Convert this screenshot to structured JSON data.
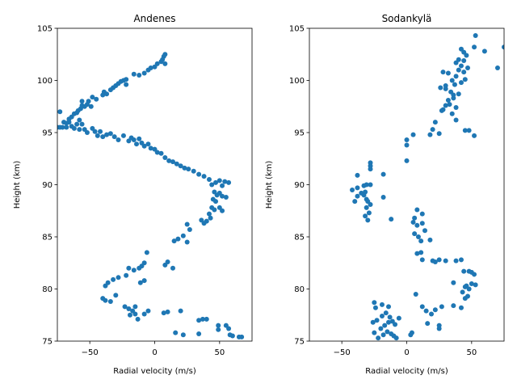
{
  "chart_data": [
    {
      "type": "scatter",
      "title": "Andenes",
      "xlabel": "Radial velocity (m/s)",
      "ylabel": "Height (km)",
      "xlim": [
        -75,
        75
      ],
      "ylim": [
        75,
        105
      ],
      "xticks": [
        -50,
        0,
        50
      ],
      "yticks": [
        75,
        80,
        85,
        90,
        95,
        100,
        105
      ],
      "grid": false,
      "color": "#1f77b4",
      "points": [
        [
          -75,
          95.5
        ],
        [
          -73,
          95.5
        ],
        [
          -71,
          95.5
        ],
        [
          -70,
          96.0
        ],
        [
          -68,
          95.5
        ],
        [
          -66,
          96.0
        ],
        [
          -64,
          95.6
        ],
        [
          -62,
          95.4
        ],
        [
          -60,
          95.8
        ],
        [
          -58,
          95.3
        ],
        [
          -56,
          95.8
        ],
        [
          -54,
          95.3
        ],
        [
          -52,
          95.0
        ],
        [
          -48,
          95.4
        ],
        [
          -46,
          95.1
        ],
        [
          -44,
          94.7
        ],
        [
          -42,
          95.1
        ],
        [
          -40,
          94.6
        ],
        [
          -37,
          94.8
        ],
        [
          -34,
          94.9
        ],
        [
          -31,
          94.6
        ],
        [
          -28,
          94.3
        ],
        [
          -24,
          94.7
        ],
        [
          -20,
          94.2
        ],
        [
          -18,
          94.5
        ],
        [
          -16,
          94.3
        ],
        [
          -14,
          93.9
        ],
        [
          -12,
          94.4
        ],
        [
          -10,
          94.0
        ],
        [
          -8,
          93.7
        ],
        [
          -5,
          93.9
        ],
        [
          -3,
          93.5
        ],
        [
          0,
          93.4
        ],
        [
          2,
          93.1
        ],
        [
          5,
          93.0
        ],
        [
          8,
          92.6
        ],
        [
          11,
          92.3
        ],
        [
          14,
          92.2
        ],
        [
          17,
          92.0
        ],
        [
          20,
          91.8
        ],
        [
          23,
          91.6
        ],
        [
          26,
          91.5
        ],
        [
          30,
          91.3
        ],
        [
          34,
          91.0
        ],
        [
          38,
          90.8
        ],
        [
          42,
          90.5
        ],
        [
          44,
          90.0
        ],
        [
          47,
          90.2
        ],
        [
          50,
          90.4
        ],
        [
          52,
          89.9
        ],
        [
          54,
          90.3
        ],
        [
          57,
          90.2
        ],
        [
          46,
          89.3
        ],
        [
          48,
          89.0
        ],
        [
          50,
          89.2
        ],
        [
          52,
          88.9
        ],
        [
          55,
          88.8
        ],
        [
          45,
          88.6
        ],
        [
          47,
          88.4
        ],
        [
          44,
          87.8
        ],
        [
          46,
          87.6
        ],
        [
          50,
          87.8
        ],
        [
          52,
          87.5
        ],
        [
          42,
          87.2
        ],
        [
          43,
          86.8
        ],
        [
          40,
          86.5
        ],
        [
          38,
          86.3
        ],
        [
          36,
          86.6
        ],
        [
          25,
          86.2
        ],
        [
          27,
          85.7
        ],
        [
          22,
          85.1
        ],
        [
          18,
          84.8
        ],
        [
          25,
          84.5
        ],
        [
          15,
          84.6
        ],
        [
          -6,
          83.5
        ],
        [
          10,
          82.6
        ],
        [
          8,
          82.3
        ],
        [
          14,
          82.0
        ],
        [
          -8,
          82.5
        ],
        [
          -10,
          82.2
        ],
        [
          -12,
          82.0
        ],
        [
          -16,
          81.8
        ],
        [
          -20,
          82.0
        ],
        [
          -22,
          81.3
        ],
        [
          -28,
          81.1
        ],
        [
          -32,
          80.9
        ],
        [
          -36,
          80.6
        ],
        [
          -38,
          80.3
        ],
        [
          -11,
          80.6
        ],
        [
          -8,
          80.8
        ],
        [
          -30,
          79.4
        ],
        [
          -40,
          79.1
        ],
        [
          -38,
          78.9
        ],
        [
          -34,
          78.8
        ],
        [
          -23,
          78.3
        ],
        [
          -20,
          78.1
        ],
        [
          -17,
          77.9
        ],
        [
          -15,
          78.3
        ],
        [
          -5,
          77.9
        ],
        [
          -8,
          77.6
        ],
        [
          -15,
          77.6
        ],
        [
          -19,
          77.5
        ],
        [
          -13,
          77.1
        ],
        [
          7,
          77.7
        ],
        [
          10,
          77.8
        ],
        [
          20,
          77.9
        ],
        [
          34,
          77.0
        ],
        [
          37,
          77.1
        ],
        [
          40,
          77.1
        ],
        [
          49,
          76.5
        ],
        [
          55,
          76.5
        ],
        [
          49,
          76.1
        ],
        [
          57,
          76.2
        ],
        [
          58,
          75.6
        ],
        [
          60,
          75.5
        ],
        [
          65,
          75.4
        ],
        [
          67,
          75.4
        ],
        [
          34,
          75.7
        ],
        [
          22,
          75.6
        ],
        [
          16,
          75.8
        ],
        [
          -73,
          97.0
        ],
        [
          -66,
          96.3
        ],
        [
          -64,
          96.5
        ],
        [
          -62,
          96.8
        ],
        [
          -60,
          96.9
        ],
        [
          -59,
          97.1
        ],
        [
          -57,
          97.3
        ],
        [
          -56,
          97.6
        ],
        [
          -54,
          97.5
        ],
        [
          -52,
          97.7
        ],
        [
          -51,
          98.0
        ],
        [
          -49,
          97.5
        ],
        [
          -56,
          98.0
        ],
        [
          -48,
          98.4
        ],
        [
          -45,
          98.2
        ],
        [
          -40,
          98.6
        ],
        [
          -39,
          98.9
        ],
        [
          -34,
          99.1
        ],
        [
          -32,
          99.3
        ],
        [
          -30,
          99.5
        ],
        [
          -28,
          99.7
        ],
        [
          -26,
          99.9
        ],
        [
          -24,
          100.0
        ],
        [
          -22,
          100.1
        ],
        [
          -16,
          100.6
        ],
        [
          -12,
          100.5
        ],
        [
          -8,
          100.7
        ],
        [
          -5,
          101.0
        ],
        [
          -3,
          101.2
        ],
        [
          0,
          101.3
        ],
        [
          2,
          101.6
        ],
        [
          5,
          101.8
        ],
        [
          6,
          102.0
        ],
        [
          7,
          102.3
        ],
        [
          8,
          102.5
        ],
        [
          8,
          101.6
        ],
        [
          -22,
          99.6
        ],
        [
          -37,
          98.7
        ],
        [
          -58,
          96.2
        ],
        [
          -68,
          95.9
        ]
      ]
    },
    {
      "type": "scatter",
      "title": "Sodankylä",
      "xlabel": "Radial velocity (m/s)",
      "ylabel": "Height (km)",
      "xlim": [
        -75,
        75
      ],
      "ylim": [
        75,
        105
      ],
      "xticks": [
        -50,
        0,
        50
      ],
      "yticks": [
        75,
        80,
        85,
        90,
        95,
        100,
        105
      ],
      "grid": false,
      "color": "#1f77b4",
      "points": [
        [
          -25,
          75.8
        ],
        [
          -22,
          75.3
        ],
        [
          -18,
          75.6
        ],
        [
          -15,
          75.9
        ],
        [
          -12,
          75.7
        ],
        [
          -10,
          75.5
        ],
        [
          -8,
          75.3
        ],
        [
          -20,
          76.2
        ],
        [
          -17,
          76.5
        ],
        [
          -14,
          76.8
        ],
        [
          -26,
          76.8
        ],
        [
          -23,
          77.0
        ],
        [
          -19,
          77.4
        ],
        [
          -16,
          77.7
        ],
        [
          -13,
          77.3
        ],
        [
          -11,
          76.9
        ],
        [
          -9,
          76.6
        ],
        [
          -6,
          77.2
        ],
        [
          -24,
          78.2
        ],
        [
          -19,
          78.5
        ],
        [
          -14,
          78.3
        ],
        [
          -25,
          78.7
        ],
        [
          3,
          75.6
        ],
        [
          4,
          75.8
        ],
        [
          25,
          76.2
        ],
        [
          25,
          76.5
        ],
        [
          16,
          76.7
        ],
        [
          19,
          77.6
        ],
        [
          15,
          77.9
        ],
        [
          22,
          78.0
        ],
        [
          12,
          78.3
        ],
        [
          27,
          78.3
        ],
        [
          36,
          78.4
        ],
        [
          42,
          78.2
        ],
        [
          45,
          79.1
        ],
        [
          47,
          79.3
        ],
        [
          43,
          79.7
        ],
        [
          46,
          80.3
        ],
        [
          50,
          80.5
        ],
        [
          53,
          80.4
        ],
        [
          48,
          80.0
        ],
        [
          45,
          80.2
        ],
        [
          36,
          80.6
        ],
        [
          7,
          79.5
        ],
        [
          52,
          81.4
        ],
        [
          50,
          81.6
        ],
        [
          48,
          81.7
        ],
        [
          44,
          81.7
        ],
        [
          42,
          82.8
        ],
        [
          38,
          82.7
        ],
        [
          30,
          82.7
        ],
        [
          25,
          82.8
        ],
        [
          22,
          82.6
        ],
        [
          20,
          82.7
        ],
        [
          12,
          82.8
        ],
        [
          11,
          83.5
        ],
        [
          8,
          83.4
        ],
        [
          18,
          84.7
        ],
        [
          11,
          84.6
        ],
        [
          9,
          85.0
        ],
        [
          6,
          85.3
        ],
        [
          14,
          85.6
        ],
        [
          8,
          86.1
        ],
        [
          12,
          86.3
        ],
        [
          5,
          86.4
        ],
        [
          6,
          86.8
        ],
        [
          12,
          87.2
        ],
        [
          8,
          87.6
        ],
        [
          -30,
          86.6
        ],
        [
          -32,
          87.0
        ],
        [
          -29,
          87.3
        ],
        [
          -31,
          87.8
        ],
        [
          -28,
          88.1
        ],
        [
          -30,
          88.4
        ],
        [
          -31,
          88.6
        ],
        [
          -33,
          89.0
        ],
        [
          -40,
          88.4
        ],
        [
          -38,
          88.9
        ],
        [
          -35,
          89.2
        ],
        [
          -32,
          89.3
        ],
        [
          -42,
          89.5
        ],
        [
          -38,
          89.7
        ],
        [
          -33,
          89.9
        ],
        [
          -28,
          90.0
        ],
        [
          -31,
          90.0
        ],
        [
          -38,
          90.9
        ],
        [
          -28,
          91.5
        ],
        [
          -28,
          91.8
        ],
        [
          -28,
          92.1
        ],
        [
          -18,
          91.0
        ],
        [
          -18,
          88.8
        ],
        [
          -12,
          86.7
        ],
        [
          0,
          92.3
        ],
        [
          0,
          93.8
        ],
        [
          0,
          94.3
        ],
        [
          5,
          94.8
        ],
        [
          25,
          94.9
        ],
        [
          18,
          94.8
        ],
        [
          20,
          95.3
        ],
        [
          22,
          96.0
        ],
        [
          45,
          95.2
        ],
        [
          48,
          95.2
        ],
        [
          52,
          94.7
        ],
        [
          38,
          96.2
        ],
        [
          35,
          96.8
        ],
        [
          27,
          97.1
        ],
        [
          30,
          97.6
        ],
        [
          38,
          97.4
        ],
        [
          32,
          98.1
        ],
        [
          36,
          98.3
        ],
        [
          40,
          98.7
        ],
        [
          34,
          98.9
        ],
        [
          30,
          99.2
        ],
        [
          26,
          99.3
        ],
        [
          37,
          99.6
        ],
        [
          42,
          99.8
        ],
        [
          45,
          100.1
        ],
        [
          38,
          100.4
        ],
        [
          32,
          100.7
        ],
        [
          44,
          100.8
        ],
        [
          40,
          101.0
        ],
        [
          47,
          101.2
        ],
        [
          42,
          101.4
        ],
        [
          38,
          101.7
        ],
        [
          40,
          102.0
        ],
        [
          46,
          102.4
        ],
        [
          44,
          102.7
        ],
        [
          42,
          103.0
        ],
        [
          52,
          103.2
        ],
        [
          53,
          104.3
        ],
        [
          60,
          102.8
        ],
        [
          75,
          103.2
        ],
        [
          70,
          101.2
        ],
        [
          35,
          100.0
        ],
        [
          28,
          100.8
        ],
        [
          33,
          97.7
        ],
        [
          30,
          99.5
        ],
        [
          44,
          101.9
        ],
        [
          36,
          98.6
        ],
        [
          28,
          97.2
        ]
      ]
    }
  ]
}
